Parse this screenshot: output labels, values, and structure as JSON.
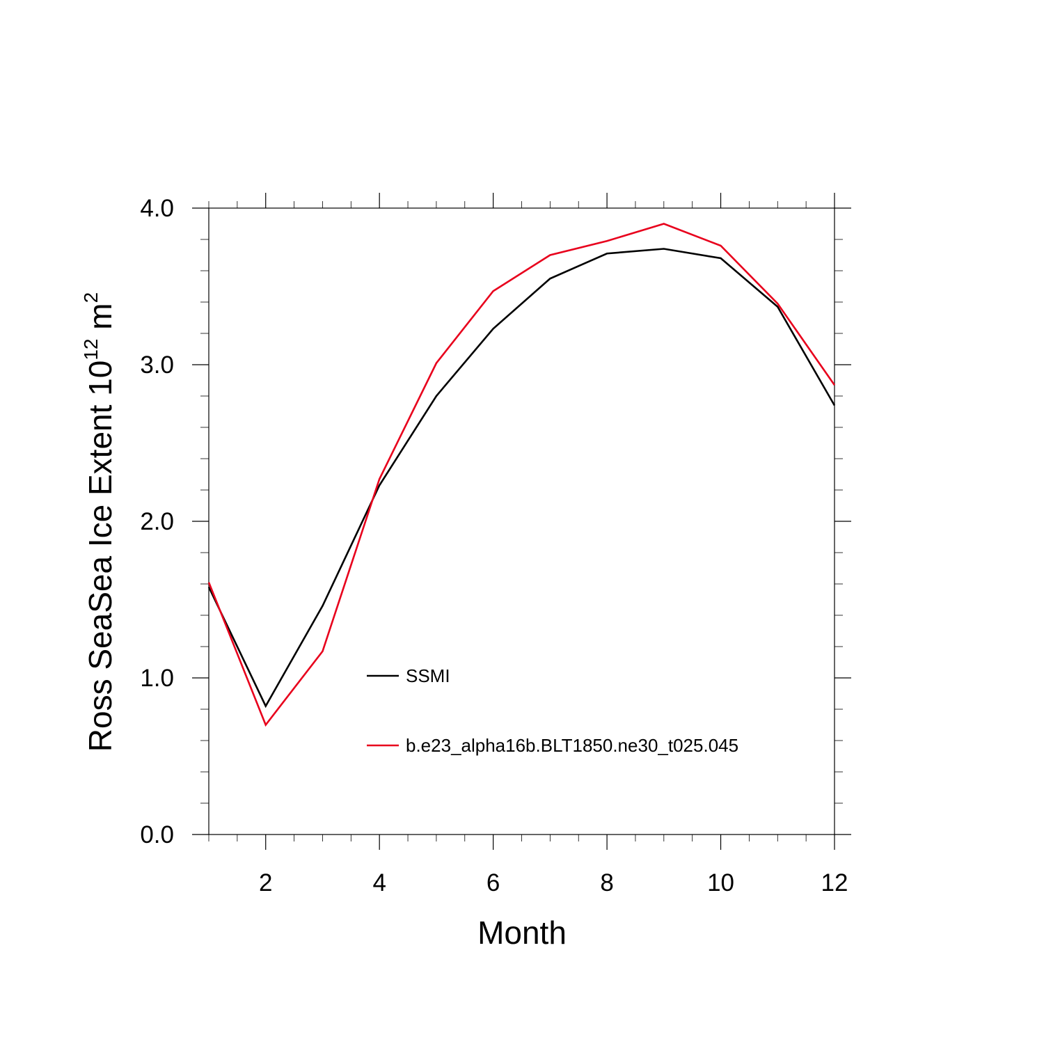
{
  "chart_data": {
    "type": "line",
    "title": "",
    "xlabel": "Month",
    "ylabel": {
      "text": "Ross SeaSea Ice Extent 10",
      "exponent_base_sup": "12",
      "unit": " m",
      "unit_sup": "2"
    },
    "xlim": [
      1,
      12
    ],
    "ylim": [
      0.0,
      4.0
    ],
    "xticks": [
      2,
      4,
      6,
      8,
      10,
      12
    ],
    "xtick_labels": [
      "2",
      "4",
      "6",
      "8",
      "10",
      "12"
    ],
    "yticks": [
      0.0,
      1.0,
      2.0,
      3.0,
      4.0
    ],
    "ytick_labels": [
      "0.0",
      "1.0",
      "2.0",
      "3.0",
      "4.0"
    ],
    "grid": false,
    "legend_position": "center-right inside plot",
    "x": [
      1,
      2,
      3,
      4,
      5,
      6,
      7,
      8,
      9,
      10,
      11,
      12
    ],
    "series": [
      {
        "name": "SSMI",
        "color": "#000000",
        "values": [
          1.58,
          0.82,
          1.46,
          2.23,
          2.8,
          3.23,
          3.55,
          3.71,
          3.74,
          3.68,
          3.37,
          2.74
        ]
      },
      {
        "name": "b.e23_alpha16b.BLT1850.ne30_t025.045",
        "color": "#e8001c",
        "values": [
          1.61,
          0.7,
          1.17,
          2.27,
          3.01,
          3.47,
          3.7,
          3.79,
          3.9,
          3.76,
          3.39,
          2.87
        ]
      }
    ]
  }
}
